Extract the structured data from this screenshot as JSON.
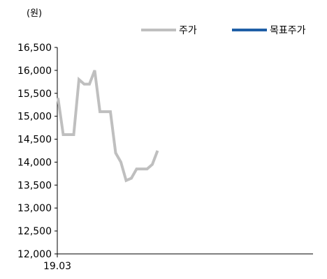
{
  "unit_label": "(원)",
  "chart_data": {
    "type": "line",
    "ylim": [
      12000,
      16500
    ],
    "y_ticks": [
      16500,
      16000,
      15500,
      15000,
      14500,
      14000,
      13500,
      13000,
      12500,
      12000
    ],
    "y_tick_labels": [
      "16,500",
      "16,000",
      "15,500",
      "15,000",
      "14,500",
      "14,000",
      "13,500",
      "13,000",
      "12,500",
      "12,000"
    ],
    "x_tick_labels": [
      "19.03"
    ],
    "legend_position": "top-right",
    "grid": false,
    "series": [
      {
        "name": "주가",
        "color": "#bfbfbf",
        "values": [
          15400,
          14600,
          14600,
          14600,
          15800,
          15700,
          15700,
          16000,
          15100,
          15100,
          15100,
          14200,
          14000,
          13600,
          13650,
          13850,
          13850,
          13850,
          13950,
          14250
        ]
      },
      {
        "name": "목표주가",
        "color": "#1f5fa6",
        "values": []
      }
    ]
  }
}
